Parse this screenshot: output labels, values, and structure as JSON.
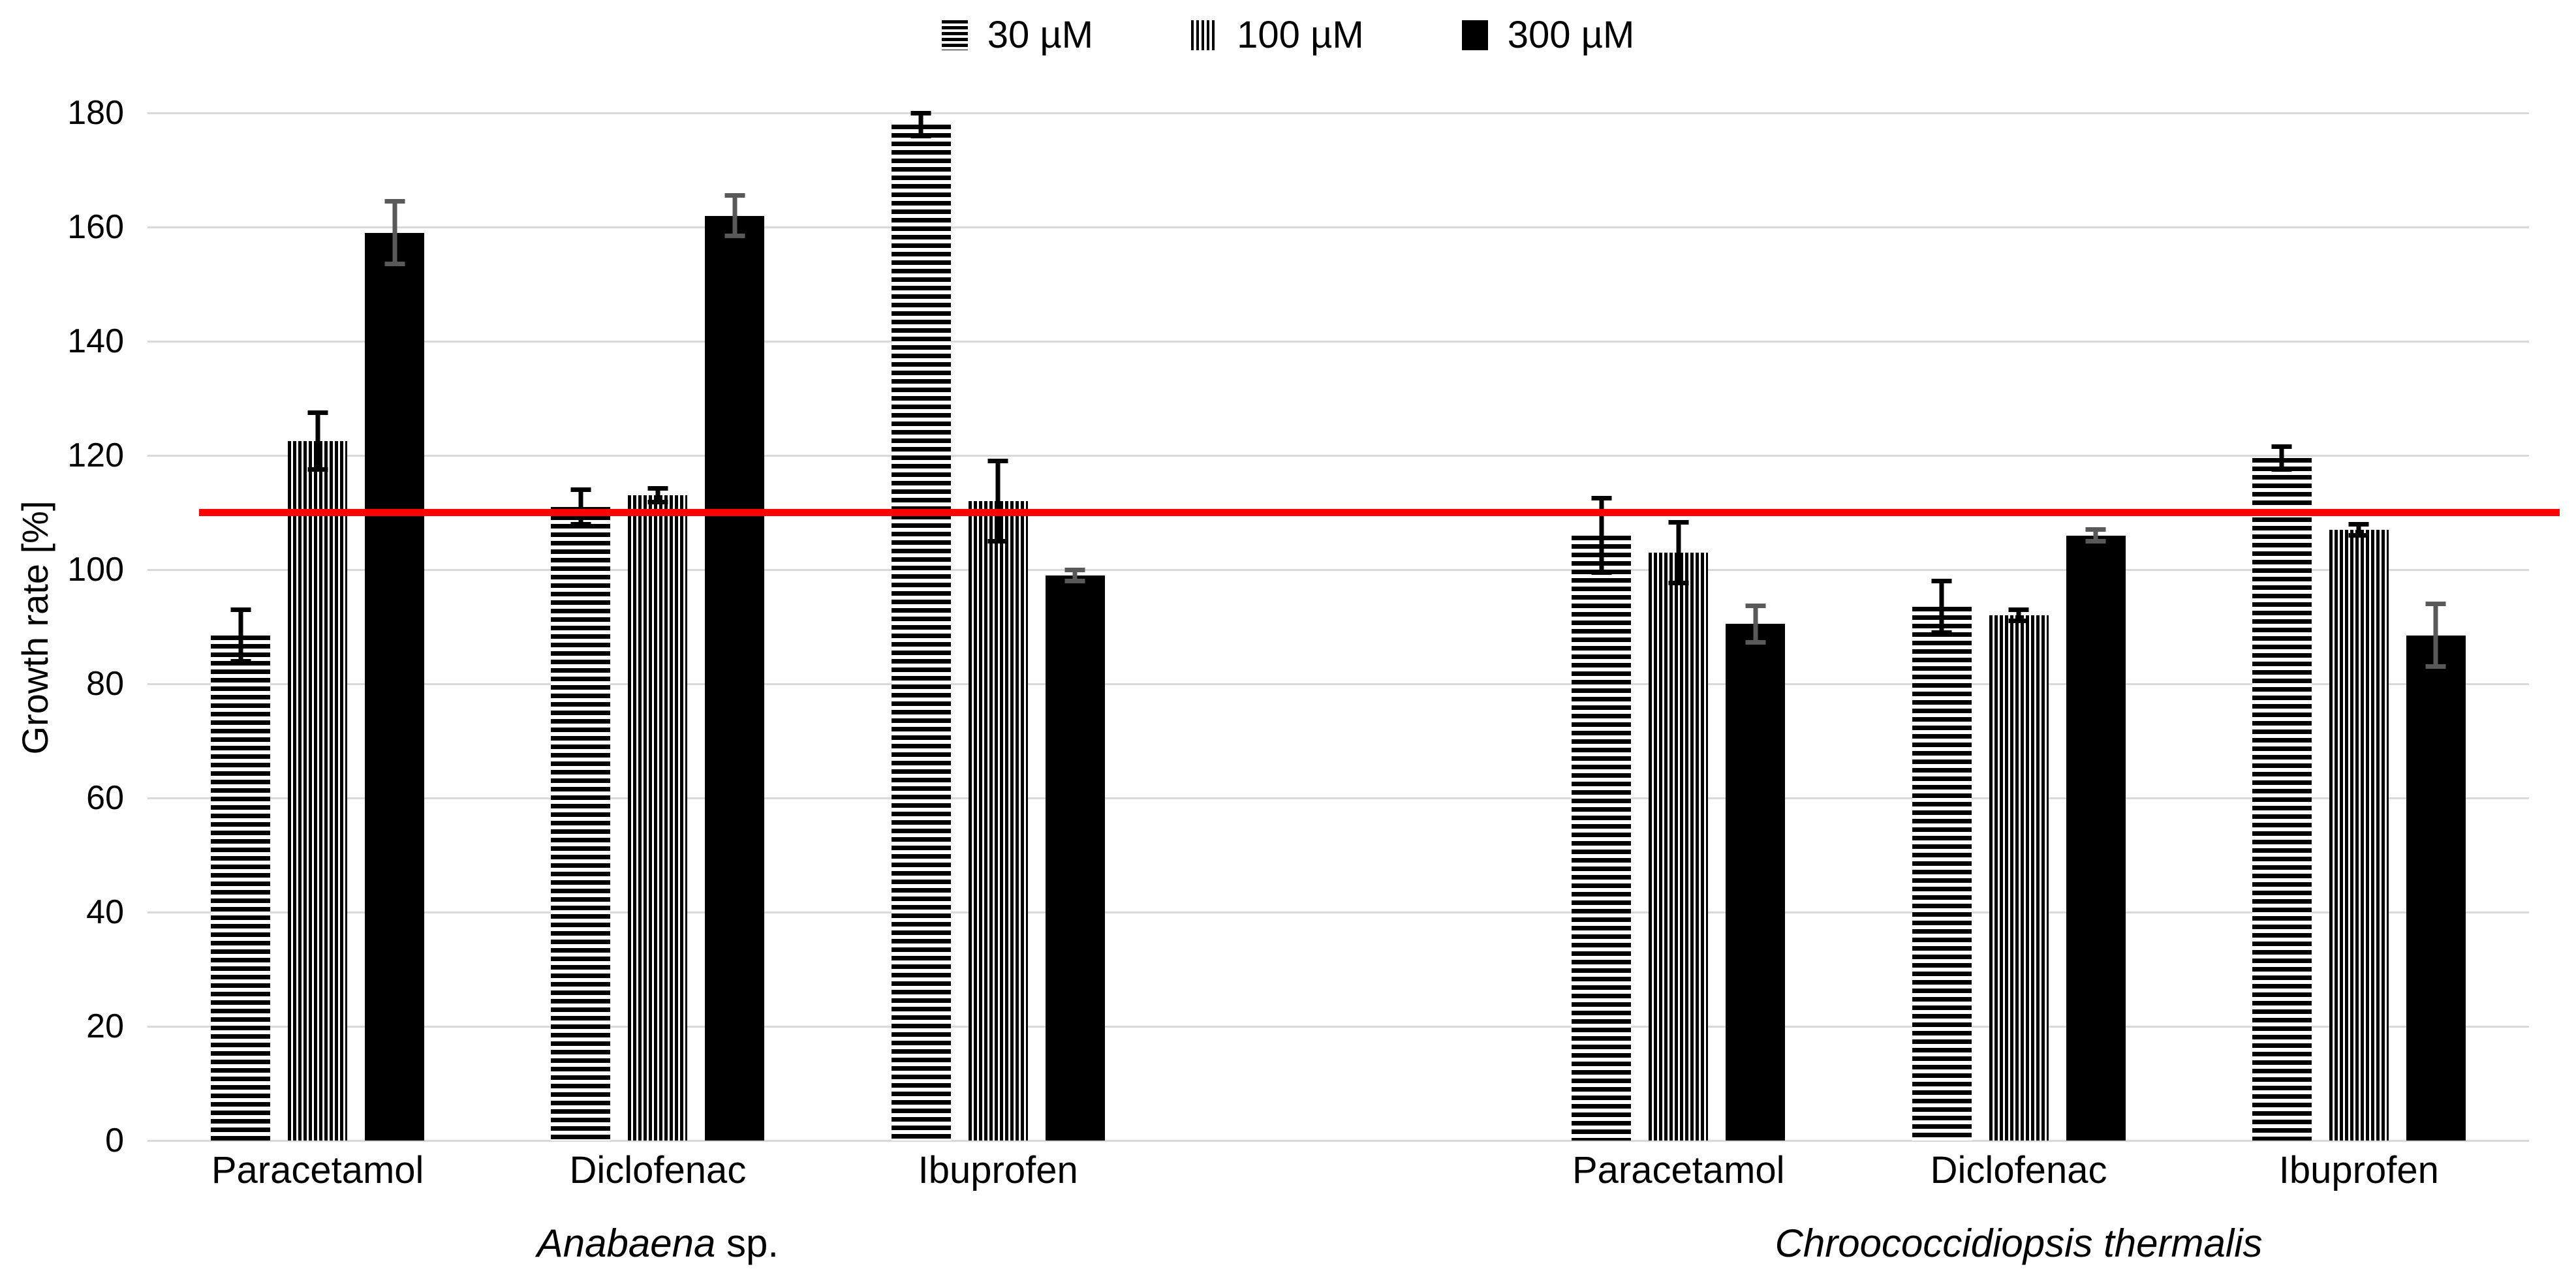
{
  "chart_data": {
    "type": "bar",
    "title": "",
    "ylabel": "Growth rate [%]",
    "ylim": [
      0,
      180
    ],
    "yticks": [
      0,
      20,
      40,
      60,
      80,
      100,
      120,
      140,
      160,
      180
    ],
    "grid": true,
    "legend_position": "top-center",
    "series_names": [
      "30 µM",
      "100 µM",
      "300 µM"
    ],
    "legend": [
      {
        "label": "30 µM",
        "pattern": "horizontal-stripes"
      },
      {
        "label": "100 µM",
        "pattern": "vertical-stripes"
      },
      {
        "label": "300 µM",
        "pattern": "solid"
      }
    ],
    "reference_line": {
      "value": 110,
      "color": "#ff0000"
    },
    "colors": {
      "bar": "#000000",
      "gridline": "#d9d9d9",
      "error_bar_30_100": "#000000",
      "error_bar_300": "#595959",
      "reference": "#ff0000"
    },
    "organisms": [
      {
        "name_italic": "Anabaena",
        "name_regular": " sp.",
        "drugs": [
          {
            "label": "Paracetamol",
            "values": [
              88.5,
              122.5,
              159
            ],
            "errors": [
              4.5,
              5.0,
              5.5
            ]
          },
          {
            "label": "Diclofenac",
            "values": [
              111,
              113,
              162
            ],
            "errors": [
              3.0,
              1.2,
              3.5
            ]
          },
          {
            "label": "Ibuprofen",
            "values": [
              178,
              112,
              99
            ],
            "errors": [
              2.0,
              7.0,
              1.0
            ]
          }
        ]
      },
      {
        "name_italic": "Chroococcidiopsis thermalis",
        "name_regular": "",
        "drugs": [
          {
            "label": "Paracetamol",
            "values": [
              106,
              103,
              90.5
            ],
            "errors": [
              6.5,
              5.3,
              3.2
            ]
          },
          {
            "label": "Diclofenac",
            "values": [
              93.5,
              92,
              106
            ],
            "errors": [
              4.5,
              1.0,
              1.0
            ]
          },
          {
            "label": "Ibuprofen",
            "values": [
              119.5,
              107,
              88.5
            ],
            "errors": [
              2.0,
              1.0,
              5.5
            ]
          }
        ]
      }
    ]
  }
}
